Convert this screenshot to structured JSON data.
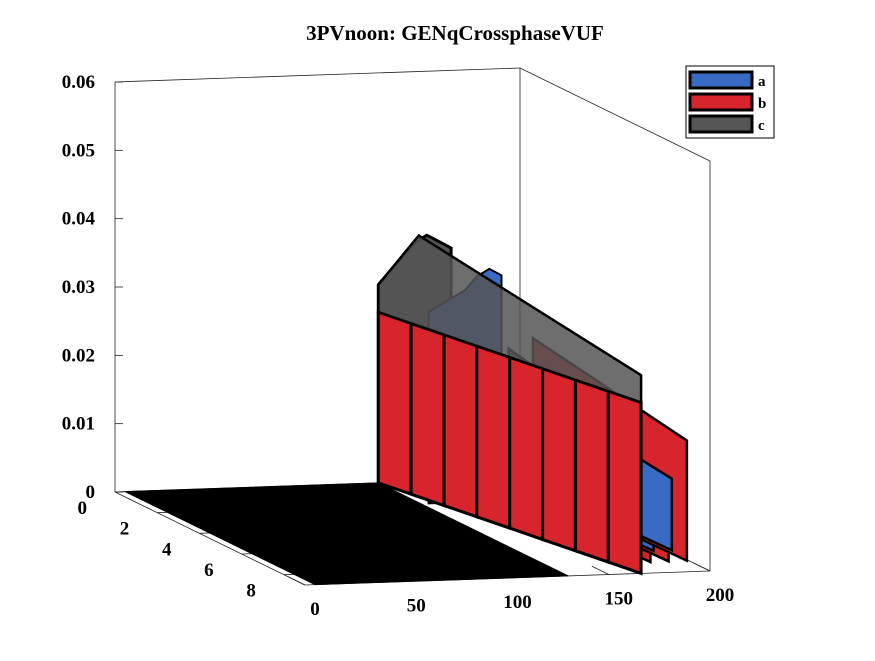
{
  "chart_data": {
    "type": "3d-surface",
    "title": "3PVnoon: GENqCrossphaseVUF",
    "xlabel": "",
    "ylabel": "",
    "zlabel": "",
    "x_ticks": [
      "0",
      "50",
      "100",
      "150",
      "200"
    ],
    "y_ticks": [
      "0",
      "2",
      "4",
      "6",
      "8"
    ],
    "z_ticks": [
      "0",
      "0.01",
      "0.02",
      "0.03",
      "0.04",
      "0.05",
      "0.06"
    ],
    "xlim": [
      0,
      200
    ],
    "ylim": [
      0,
      9
    ],
    "zlim": [
      0,
      0.06
    ],
    "legend": {
      "position": "top-right",
      "entries": [
        {
          "label": "a",
          "color": "#3a6bc4"
        },
        {
          "label": "b",
          "color": "#d8242c"
        },
        {
          "label": "c",
          "color": "#555555"
        }
      ]
    },
    "colors": {
      "a": "#3a6bc4",
      "b": "#d8242c",
      "c": "#555555",
      "floor": "#000000"
    },
    "series_front_edge": {
      "note_x": [
        130,
        136,
        142,
        148,
        154,
        160,
        166
      ],
      "b": [
        0.025,
        0.025,
        0.025,
        0.025,
        0.025,
        0.025,
        0.025
      ],
      "c": [
        0.029,
        0.031,
        0.033,
        0.035,
        0.036,
        0.035,
        0.034
      ],
      "a": [
        0.028,
        0.029,
        0.03,
        0.031,
        0.033,
        0.034,
        0.033
      ]
    }
  }
}
